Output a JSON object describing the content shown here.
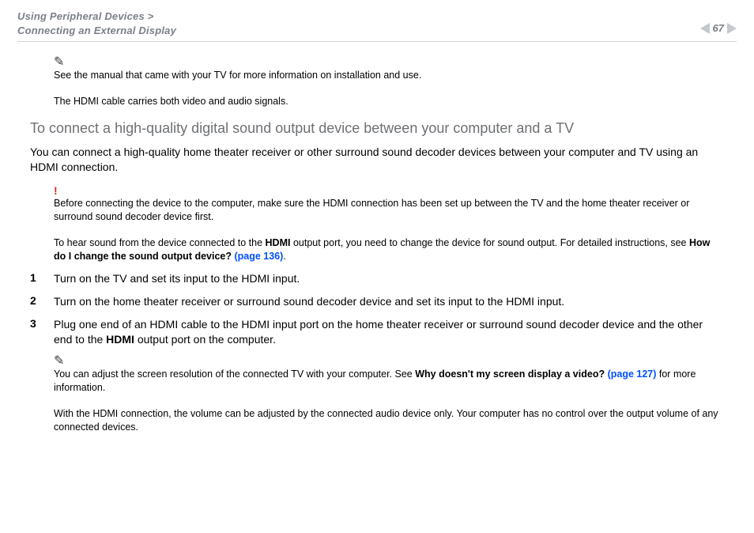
{
  "header": {
    "breadcrumb_line1": "Using Peripheral Devices >",
    "breadcrumb_line2": "Connecting an External Display",
    "page_number": "67"
  },
  "note1": {
    "text": "See the manual that came with your TV for more information on installation and use."
  },
  "line_hdmi_signals": "The HDMI cable carries both video and audio signals.",
  "section_title": "To connect a high-quality digital sound output device between your computer and a TV",
  "intro_para": "You can connect a high-quality home theater receiver or other surround sound decoder devices between your computer and TV using an HDMI connection.",
  "warning": {
    "text": "Before connecting the device to the computer, make sure the HDMI connection has been set up between the TV and the home theater receiver or surround sound decoder device first."
  },
  "hear_sound": {
    "pre": "To hear sound from the device connected to the ",
    "bold1": "HDMI",
    "mid": " output port, you need to change the device for sound output. For detailed instructions, see ",
    "link_bold": "How do I change the sound output device?",
    "link_page": " (page 136)",
    "post": "."
  },
  "steps": {
    "s1": "Turn on the TV and set its input to the HDMI input.",
    "s2": "Turn on the home theater receiver or surround sound decoder device and set its input to the HDMI input.",
    "s3_pre": "Plug one end of an HDMI cable to the HDMI input port on the home theater receiver or surround sound decoder device and the other end to the ",
    "s3_bold": "HDMI",
    "s3_post": " output port on the computer."
  },
  "note2": {
    "pre": "You can adjust the screen resolution of the connected TV with your computer. See ",
    "link_bold": "Why doesn't my screen display a video?",
    "link_page": " (page 127)",
    "post": " for more information."
  },
  "final_para": "With the HDMI connection, the volume can be adjusted by the connected audio device only. Your computer has no control over the output volume of any connected devices.",
  "colors": {
    "text": "#000000",
    "muted": "#7b7f87",
    "heading": "#6d7074",
    "link": "#0050ff",
    "warn": "#d02828",
    "rule": "#d5d7db",
    "triangle": "#c4c8cf",
    "background": "#ffffff"
  },
  "typography": {
    "body_fontsize": 14,
    "note_fontsize": 12.5,
    "heading_fontsize": 18,
    "breadcrumb_fontsize": 13
  }
}
